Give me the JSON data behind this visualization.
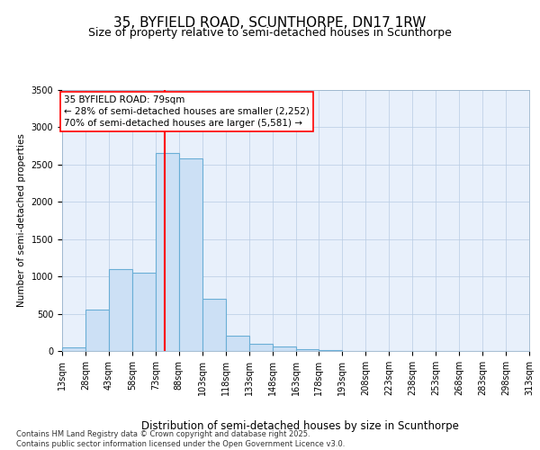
{
  "title": "35, BYFIELD ROAD, SCUNTHORPE, DN17 1RW",
  "subtitle": "Size of property relative to semi-detached houses in Scunthorpe",
  "xlabel": "Distribution of semi-detached houses by size in Scunthorpe",
  "ylabel": "Number of semi-detached properties",
  "bar_color": "#cce0f5",
  "bar_edge_color": "#6aaed6",
  "background_color": "#e8f0fb",
  "annotation_text": "35 BYFIELD ROAD: 79sqm\n← 28% of semi-detached houses are smaller (2,252)\n70% of semi-detached houses are larger (5,581) →",
  "red_line_x": 79,
  "bins": [
    13,
    28,
    43,
    58,
    73,
    88,
    103,
    118,
    133,
    148,
    163,
    178,
    193,
    208,
    223,
    238,
    253,
    268,
    283,
    298,
    313
  ],
  "values": [
    50,
    550,
    1100,
    1050,
    2650,
    2580,
    700,
    200,
    100,
    60,
    30,
    15,
    5,
    3,
    2,
    1,
    1,
    1,
    1,
    0
  ],
  "ylim": [
    0,
    3500
  ],
  "yticks": [
    0,
    500,
    1000,
    1500,
    2000,
    2500,
    3000,
    3500
  ],
  "footer": "Contains HM Land Registry data © Crown copyright and database right 2025.\nContains public sector information licensed under the Open Government Licence v3.0.",
  "title_fontsize": 11,
  "subtitle_fontsize": 9,
  "xlabel_fontsize": 8.5,
  "ylabel_fontsize": 7.5,
  "tick_fontsize": 7,
  "annotation_fontsize": 7.5,
  "footer_fontsize": 6
}
